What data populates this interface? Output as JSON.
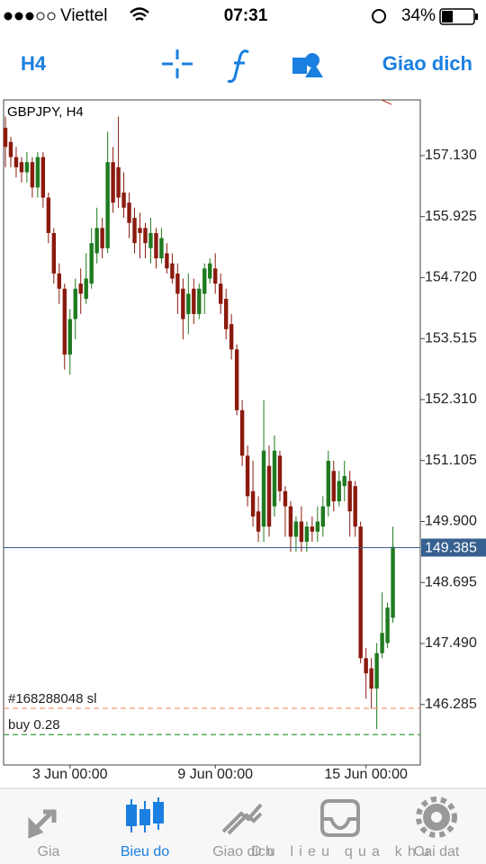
{
  "status_bar": {
    "carrier": "Viettel",
    "time": "07:31",
    "battery": "34%"
  },
  "toolbar": {
    "timeframe": "H4",
    "trade_button": "Giao dich"
  },
  "chart_data": {
    "type": "candlestick",
    "title": "GBPJPY, H4",
    "categories": [
      null,
      null,
      null,
      null,
      null,
      null,
      null,
      null,
      null,
      null,
      null,
      null,
      "3 Jun 00:00",
      null,
      null,
      null,
      null,
      null,
      null,
      null,
      null,
      null,
      null,
      null,
      null,
      null,
      null,
      null,
      null,
      null,
      null,
      null,
      null,
      null,
      null,
      null,
      null,
      null,
      null,
      "9 Jun 00:00",
      null,
      null,
      null,
      null,
      null,
      null,
      null,
      null,
      null,
      null,
      null,
      null,
      null,
      null,
      null,
      null,
      null,
      null,
      null,
      null,
      null,
      null,
      null,
      null,
      null,
      null,
      null,
      "15 Jun 00:00",
      null,
      null,
      null,
      null,
      null
    ],
    "open": [
      157.68,
      157.4,
      157.1,
      157.0,
      156.8,
      157.0,
      156.5,
      157.1,
      156.3,
      155.6,
      154.8,
      154.5,
      153.2,
      153.9,
      154.6,
      154.3,
      154.6,
      155.2,
      155.7,
      155.3,
      157.0,
      156.9,
      156.4,
      156.2,
      155.9,
      155.7,
      155.7,
      155.3,
      155.6,
      155.1,
      155.2,
      155.0,
      154.8,
      154.5,
      154.0,
      154.5,
      154.0,
      154.4,
      154.7,
      154.9,
      154.6,
      154.3,
      153.8,
      153.3,
      152.1,
      151.2,
      150.5,
      150.1,
      149.8,
      151.0,
      150.2,
      151.2,
      150.5,
      150.2,
      149.6,
      149.9,
      149.5,
      149.8,
      149.7,
      149.8,
      150.2,
      150.9,
      150.3,
      150.6,
      150.7,
      150.6,
      149.8,
      147.2,
      147.0,
      146.6,
      147.3,
      147.5,
      148.0
    ],
    "high": [
      157.9,
      157.5,
      157.3,
      157.1,
      157.2,
      157.1,
      157.2,
      157.2,
      156.4,
      155.7,
      155.0,
      154.6,
      154.1,
      154.7,
      154.9,
      155.2,
      155.7,
      156.1,
      155.9,
      157.6,
      157.3,
      157.9,
      156.8,
      156.4,
      156.1,
      156.0,
      155.8,
      155.9,
      155.7,
      155.7,
      155.4,
      155.2,
      155.0,
      154.7,
      154.8,
      154.7,
      154.6,
      155.0,
      155.1,
      155.2,
      154.8,
      154.5,
      154.0,
      153.4,
      152.3,
      151.4,
      151.1,
      150.4,
      152.3,
      151.4,
      151.6,
      151.3,
      150.6,
      150.3,
      150.0,
      150.2,
      149.9,
      150.0,
      150.2,
      150.4,
      151.3,
      151.1,
      150.9,
      151.1,
      150.9,
      150.7,
      149.9,
      147.4,
      147.2,
      147.5,
      148.5,
      148.3,
      149.8
    ],
    "low": [
      156.9,
      156.9,
      156.7,
      156.6,
      156.6,
      156.3,
      156.3,
      156.1,
      155.4,
      154.6,
      154.2,
      152.9,
      152.8,
      153.5,
      154.0,
      154.2,
      154.5,
      155.0,
      155.1,
      155.2,
      156.0,
      156.1,
      155.9,
      155.5,
      155.2,
      155.1,
      155.1,
      155.0,
      154.9,
      155.0,
      154.8,
      154.6,
      154.0,
      153.5,
      153.6,
      153.8,
      153.9,
      154.0,
      154.6,
      154.4,
      154.0,
      153.5,
      153.1,
      152.0,
      151.0,
      150.2,
      149.8,
      149.5,
      149.5,
      149.6,
      150.0,
      150.3,
      149.6,
      149.3,
      149.3,
      149.3,
      149.3,
      149.5,
      149.5,
      149.6,
      150.0,
      150.1,
      150.2,
      150.3,
      149.6,
      149.6,
      147.1,
      146.4,
      146.2,
      145.8,
      147.2,
      147.4,
      147.9
    ],
    "close": [
      157.3,
      157.1,
      156.9,
      156.8,
      157.0,
      156.5,
      157.1,
      156.3,
      155.6,
      154.8,
      154.5,
      153.2,
      153.9,
      154.5,
      154.4,
      154.7,
      155.4,
      155.7,
      155.3,
      157.0,
      156.2,
      156.3,
      156.1,
      155.8,
      155.4,
      155.6,
      155.4,
      155.6,
      155.1,
      155.5,
      154.9,
      154.7,
      154.4,
      153.9,
      154.4,
      154.0,
      154.5,
      154.9,
      155.0,
      154.6,
      154.2,
      153.7,
      153.3,
      152.1,
      151.2,
      150.4,
      150.0,
      149.7,
      151.3,
      149.8,
      151.3,
      150.5,
      150.2,
      149.6,
      149.9,
      149.5,
      149.8,
      149.7,
      149.9,
      150.2,
      151.1,
      150.3,
      150.7,
      150.8,
      150.1,
      149.8,
      147.2,
      146.9,
      146.6,
      147.3,
      147.7,
      148.2,
      149.4
    ],
    "up_color": "#1f7a1f",
    "down_color": "#8b1a0e",
    "ylim": [
      145.09,
      158.23
    ],
    "yticks": [
      {
        "value": 157.13,
        "label": "157.130"
      },
      155.925,
      {
        "value": 154.72,
        "label": "154.720"
      },
      153.515,
      {
        "value": 152.31,
        "label": "152.310"
      },
      151.105,
      {
        "value": 149.9,
        "label": "149.900"
      },
      148.695,
      {
        "value": 147.49,
        "label": "147.490"
      },
      146.285
    ],
    "current_price": 149.385,
    "current_price_color": "#36608f",
    "levels": [
      {
        "label": "#168288048 sl",
        "value": 146.21,
        "color": "#f0966e"
      },
      {
        "label": "buy 0.28",
        "value": 145.69,
        "color": "#3c9a3c"
      }
    ]
  },
  "tab_bar": {
    "tabs": [
      "Gia",
      "Bieu do",
      "Giao dich",
      "Du lieu qua khu",
      "Cai dat"
    ],
    "active": 1
  }
}
